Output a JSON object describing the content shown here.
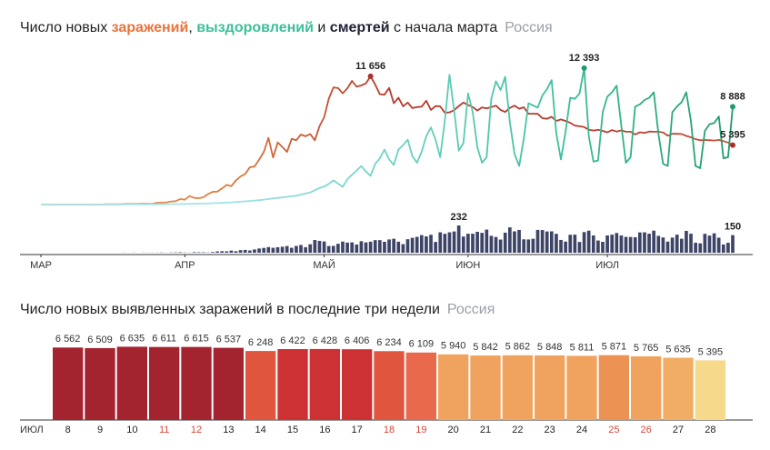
{
  "chart_data": [
    {
      "type": "line",
      "title_parts": [
        {
          "text": "Число новых "
        },
        {
          "text": "заражений",
          "color": "#e8743b"
        },
        {
          "text": ", "
        },
        {
          "text": "выздоровлений",
          "color": "#3cbf9a"
        },
        {
          "text": " и "
        },
        {
          "text": "смертей",
          "color": "#1f2233"
        },
        {
          "text": " с начала марта"
        }
      ],
      "subtitle": "Россия",
      "subtitle_color": "#9aa0a8",
      "xlim": [
        0,
        149
      ],
      "xticks": [
        {
          "value": 0,
          "label": "МАР"
        },
        {
          "value": 31,
          "label": "АПР"
        },
        {
          "value": 61,
          "label": "МАЙ"
        },
        {
          "value": 92,
          "label": "ИЮН"
        },
        {
          "value": 122,
          "label": "ИЮЛ"
        }
      ],
      "ylim": [
        0,
        12800
      ],
      "y2lim": [
        0,
        240
      ],
      "x": [
        0,
        1,
        2,
        3,
        4,
        5,
        6,
        7,
        8,
        9,
        10,
        11,
        12,
        13,
        14,
        15,
        16,
        17,
        18,
        19,
        20,
        21,
        22,
        23,
        24,
        25,
        26,
        27,
        28,
        29,
        30,
        31,
        32,
        33,
        34,
        35,
        36,
        37,
        38,
        39,
        40,
        41,
        42,
        43,
        44,
        45,
        46,
        47,
        48,
        49,
        50,
        51,
        52,
        53,
        54,
        55,
        56,
        57,
        58,
        59,
        60,
        61,
        62,
        63,
        64,
        65,
        66,
        67,
        68,
        69,
        70,
        71,
        72,
        73,
        74,
        75,
        76,
        77,
        78,
        79,
        80,
        81,
        82,
        83,
        84,
        85,
        86,
        87,
        88,
        89,
        90,
        91,
        92,
        93,
        94,
        95,
        96,
        97,
        98,
        99,
        100,
        101,
        102,
        103,
        104,
        105,
        106,
        107,
        108,
        109,
        110,
        111,
        112,
        113,
        114,
        115,
        116,
        117,
        118,
        119,
        120,
        121,
        122,
        123,
        124,
        125,
        126,
        127,
        128,
        129,
        130,
        131,
        132,
        133,
        134,
        135,
        136,
        137,
        138,
        139,
        140,
        141,
        142,
        143,
        144,
        145,
        146,
        147,
        148,
        149
      ],
      "series": [
        {
          "name": "заражений",
          "gradient": [
            "#e8a060",
            "#e08040",
            "#b63a2e",
            "#b63a2e",
            "#c8503a"
          ],
          "marker_color": "#a8322a",
          "values": [
            0,
            0,
            1,
            0,
            2,
            0,
            4,
            2,
            0,
            1,
            2,
            8,
            11,
            3,
            25,
            30,
            21,
            33,
            52,
            54,
            53,
            61,
            62,
            71,
            57,
            163,
            182,
            196,
            270,
            302,
            500,
            440,
            771,
            601,
            582,
            658,
            954,
            1154,
            1175,
            1459,
            1786,
            1667,
            2186,
            2558,
            2774,
            3388,
            3448,
            4070,
            4785,
            6060,
            4268,
            5642,
            5236,
            4774,
            5966,
            5849,
            6361,
            6198,
            6411,
            5841,
            7099,
            7933,
            9623,
            10633,
            10581,
            10102,
            10559,
            11231,
            10699,
            10817,
            11012,
            11656,
            10899,
            10028,
            9974,
            10598,
            9200,
            9709,
            8926,
            9263,
            8764,
            8849,
            8894,
            9434,
            8599,
            8946,
            8915,
            8338,
            8371,
            8572,
            8952,
            9268,
            9035,
            8863,
            8536,
            8831,
            8726,
            8855,
            8985,
            8595,
            8404,
            8779,
            8987,
            8706,
            8835,
            8246,
            8248,
            8238,
            7843,
            7790,
            7972,
            7600,
            7728,
            7600,
            7425,
            7176,
            7113,
            7040,
            6800,
            6719,
            6800,
            6693,
            6556,
            6760,
            6632,
            6736,
            6611,
            6611,
            6368,
            6562,
            6509,
            6635,
            6611,
            6615,
            6537,
            6248,
            6422,
            6428,
            6406,
            6234,
            6109,
            5940,
            5842,
            5862,
            5848,
            5811,
            5871,
            5765,
            5635,
            5395
          ],
          "value_labels": {
            "71": "11 656",
            "149": "5 395"
          }
        },
        {
          "name": "выздоровлений",
          "gradient": [
            "#a6e3e8",
            "#a6e3e8",
            "#6fd3c4",
            "#3cbf9a",
            "#1f9c6b"
          ],
          "marker_color": "#1f9c6b",
          "values": [
            0,
            0,
            0,
            0,
            0,
            0,
            0,
            0,
            0,
            0,
            0,
            0,
            0,
            0,
            1,
            2,
            3,
            3,
            5,
            5,
            8,
            10,
            12,
            15,
            18,
            20,
            25,
            30,
            35,
            40,
            45,
            50,
            60,
            70,
            80,
            90,
            100,
            120,
            140,
            160,
            180,
            200,
            230,
            260,
            290,
            320,
            360,
            400,
            450,
            500,
            550,
            600,
            650,
            700,
            750,
            800,
            900,
            1000,
            1100,
            1300,
            1500,
            1626,
            1875,
            2200,
            1900,
            1600,
            2300,
            2700,
            3100,
            3500,
            3000,
            2600,
            3700,
            4200,
            5000,
            4100,
            3600,
            5000,
            5400,
            5900,
            4400,
            3800,
            4800,
            6200,
            7000,
            5900,
            4300,
            7600,
            11800,
            8500,
            4900,
            5600,
            10100,
            8400,
            5200,
            3800,
            4300,
            9600,
            11200,
            10400,
            11600,
            7500,
            4600,
            3500,
            6000,
            9200,
            9000,
            8800,
            9900,
            10500,
            11300,
            6500,
            4100,
            6600,
            9700,
            9600,
            10100,
            12393,
            6200,
            3900,
            4000,
            8400,
            9800,
            10200,
            10800,
            7200,
            3800,
            4300,
            8900,
            9100,
            9500,
            9700,
            10200,
            6400,
            3700,
            3500,
            8400,
            8900,
            9300,
            10200,
            7600,
            3500,
            3300,
            6700,
            7300,
            7400,
            8000,
            4200,
            4300,
            8888
          ],
          "value_labels": {
            "117": "12 393",
            "149": "8 888"
          }
        },
        {
          "name": "смертей",
          "axis": "y2",
          "color": "#3d4466",
          "values": [
            0,
            0,
            0,
            0,
            0,
            0,
            0,
            0,
            0,
            0,
            0,
            0,
            0,
            0,
            0,
            0,
            0,
            0,
            1,
            0,
            1,
            0,
            1,
            1,
            1,
            1,
            2,
            1,
            2,
            3,
            4,
            2,
            1,
            5,
            4,
            4,
            2,
            6,
            11,
            13,
            12,
            18,
            13,
            22,
            24,
            19,
            28,
            36,
            41,
            48,
            42,
            47,
            51,
            57,
            42,
            58,
            66,
            47,
            72,
            108,
            101,
            96,
            57,
            58,
            76,
            95,
            86,
            88,
            70,
            98,
            88,
            94,
            107,
            107,
            93,
            113,
            119,
            94,
            73,
            115,
            127,
            135,
            150,
            139,
            153,
            92,
            174,
            161,
            174,
            181,
            232,
            138,
            162,
            162,
            178,
            169,
            197,
            144,
            134,
            112,
            171,
            216,
            182,
            194,
            114,
            113,
            119,
            194,
            193,
            181,
            182,
            161,
            109,
            95,
            153,
            154,
            92,
            176,
            188,
            147,
            104,
            93,
            147,
            154,
            168,
            147,
            135,
            134,
            132,
            173,
            174,
            162,
            188,
            144,
            130,
            95,
            129,
            154,
            119,
            186,
            162,
            85,
            80,
            161,
            146,
            165,
            128,
            70,
            85,
            150
          ],
          "value_labels": {
            "90": "232",
            "149": "150"
          }
        }
      ]
    },
    {
      "type": "bar",
      "title": "Число новых выявленных заражений в последние три недели",
      "subtitle": "Россия",
      "subtitle_color": "#9aa0a8",
      "axis_label": "ИЮЛ",
      "categories": [
        "8",
        "9",
        "10",
        "11",
        "12",
        "13",
        "14",
        "15",
        "16",
        "17",
        "18",
        "19",
        "20",
        "21",
        "22",
        "23",
        "24",
        "25",
        "26",
        "27",
        "28"
      ],
      "category_colors": [
        "#222",
        "#222",
        "#222",
        "#d9473a",
        "#d9473a",
        "#222",
        "#222",
        "#222",
        "#222",
        "#222",
        "#d9473a",
        "#d9473a",
        "#222",
        "#222",
        "#222",
        "#222",
        "#222",
        "#d9473a",
        "#d9473a",
        "#222",
        "#222"
      ],
      "values": [
        6562,
        6509,
        6635,
        6611,
        6615,
        6537,
        6248,
        6422,
        6428,
        6406,
        6234,
        6109,
        5940,
        5842,
        5862,
        5848,
        5811,
        5871,
        5765,
        5635,
        5395
      ],
      "value_labels": [
        "6 562",
        "6 509",
        "6 635",
        "6 611",
        "6 615",
        "6 537",
        "6 248",
        "6 422",
        "6 428",
        "6 406",
        "6 234",
        "6 109",
        "5 940",
        "5 842",
        "5 862",
        "5 848",
        "5 811",
        "5 871",
        "5 765",
        "5 635",
        "5 395"
      ],
      "colors": [
        "#a3232f",
        "#a3232f",
        "#a3232f",
        "#a3232f",
        "#a3232f",
        "#a3232f",
        "#e0553e",
        "#cc3233",
        "#cc3233",
        "#cc3233",
        "#e0553e",
        "#e8694b",
        "#f0a35e",
        "#f0a35e",
        "#f0a35e",
        "#f0a35e",
        "#f0a35e",
        "#ec9354",
        "#f0a35e",
        "#f2ad65",
        "#f7d98b"
      ],
      "ylim": [
        0,
        6750
      ]
    }
  ]
}
